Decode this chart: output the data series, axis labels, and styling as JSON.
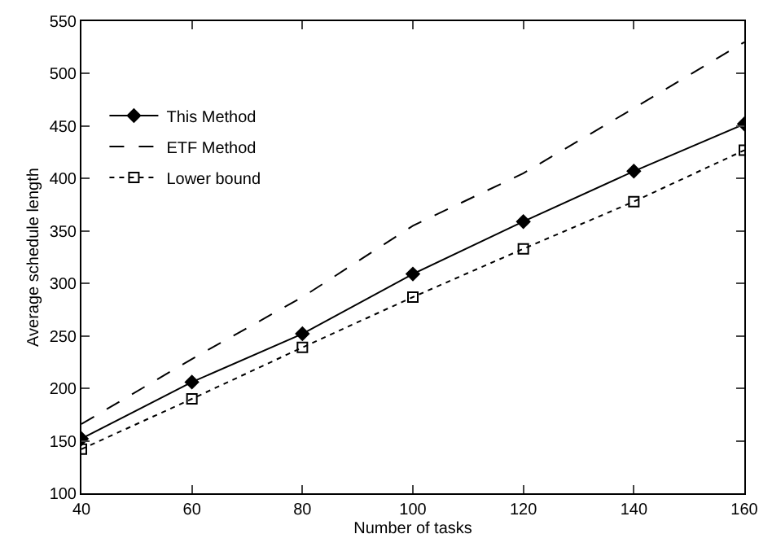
{
  "chart_data": {
    "type": "line",
    "xlabel": "Number of tasks",
    "ylabel": "Average schedule length",
    "x": [
      40,
      60,
      80,
      100,
      120,
      140,
      160
    ],
    "series": [
      {
        "name": "This Method",
        "color": "#000000",
        "marker": "diamond",
        "line_style": "solid",
        "values": [
          152,
          206,
          252,
          309,
          359,
          407,
          452
        ]
      },
      {
        "name": "ETF Method",
        "color": "#000000",
        "marker": "none",
        "line_style": "dashed",
        "values": [
          166,
          228,
          287,
          355,
          405,
          467,
          530
        ]
      },
      {
        "name": "Lower bound",
        "color": "#000000",
        "marker": "square",
        "line_style": "dotted",
        "values": [
          142,
          190,
          239,
          287,
          333,
          378,
          427
        ]
      }
    ],
    "xlim": [
      40,
      160
    ],
    "xticks": [
      40,
      60,
      80,
      100,
      120,
      140,
      160
    ],
    "ylim": [
      100,
      550
    ],
    "yticks": [
      100,
      150,
      200,
      250,
      300,
      350,
      400,
      450,
      500,
      550
    ],
    "grid": false,
    "legend": "top left"
  }
}
